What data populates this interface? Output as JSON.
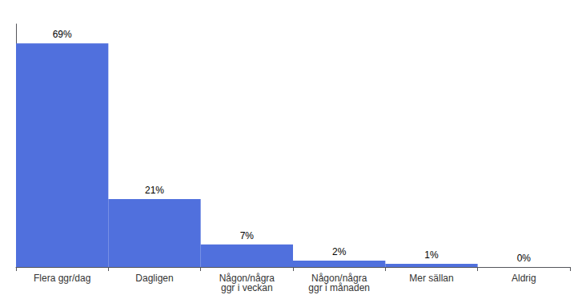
{
  "chart_data": {
    "type": "bar",
    "categories": [
      "Flera ggr/dag",
      "Dagligen",
      "Någon/några\nggr i veckan",
      "Någon/några\nggr i månaden",
      "Mer sällan",
      "Aldrig"
    ],
    "values": [
      69,
      21,
      7,
      2,
      1,
      0
    ],
    "value_labels": [
      "69%",
      "21%",
      "7%",
      "2%",
      "1%",
      "0%"
    ],
    "data_labels": true,
    "ylim": [
      0,
      75
    ],
    "tick_labels": "x",
    "grid": false
  }
}
